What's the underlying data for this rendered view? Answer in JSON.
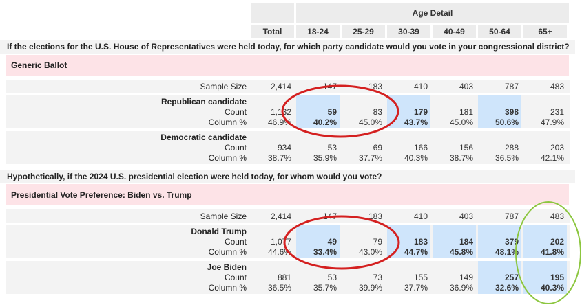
{
  "table": {
    "age_detail": "Age Detail",
    "columns": [
      "Total",
      "18-24",
      "25-29",
      "30-39",
      "40-49",
      "50-64",
      "65+"
    ]
  },
  "q1": {
    "question": "If the elections for the U.S. House of Representatives were held today, for which party candidate would you vote in your congressional district?",
    "banner": "Generic Ballot",
    "sample_label": "Sample Size",
    "sample": [
      "2,414",
      "147",
      "183",
      "410",
      "403",
      "787",
      "483"
    ],
    "groups": [
      {
        "name": "Republican candidate",
        "count_label": "Count",
        "pct_label": "Column %",
        "count": [
          "1,132",
          "59",
          "83",
          "179",
          "181",
          "398",
          "231"
        ],
        "pct": [
          "46.9%",
          "40.2%",
          "45.0%",
          "43.7%",
          "45.0%",
          "50.6%",
          "47.9%"
        ],
        "highlight": [
          false,
          true,
          false,
          true,
          false,
          true,
          false
        ]
      },
      {
        "name": "Democratic candidate",
        "count_label": "Count",
        "pct_label": "Column %",
        "count": [
          "934",
          "53",
          "69",
          "166",
          "156",
          "288",
          "203"
        ],
        "pct": [
          "38.7%",
          "35.9%",
          "37.7%",
          "40.3%",
          "38.7%",
          "36.5%",
          "42.1%"
        ],
        "highlight": [
          false,
          false,
          false,
          false,
          false,
          false,
          false
        ]
      }
    ]
  },
  "q2": {
    "question": "Hypothetically, if the 2024 U.S. presidential election were held today, for whom would you vote?",
    "banner": "Presidential Vote Preference: Biden vs. Trump",
    "sample_label": "Sample Size",
    "sample": [
      "2,414",
      "147",
      "183",
      "410",
      "403",
      "787",
      "483"
    ],
    "groups": [
      {
        "name": "Donald Trump",
        "count_label": "Count",
        "pct_label": "Column %",
        "count": [
          "1,077",
          "49",
          "79",
          "183",
          "184",
          "379",
          "202"
        ],
        "pct": [
          "44.6%",
          "33.4%",
          "43.0%",
          "44.7%",
          "45.8%",
          "48.1%",
          "41.8%"
        ],
        "highlight": [
          false,
          true,
          false,
          true,
          true,
          true,
          true
        ]
      },
      {
        "name": "Joe Biden",
        "count_label": "Count",
        "pct_label": "Column %",
        "count": [
          "881",
          "53",
          "73",
          "155",
          "149",
          "257",
          "195"
        ],
        "pct": [
          "36.5%",
          "35.7%",
          "39.9%",
          "37.7%",
          "36.9%",
          "32.6%",
          "40.3%"
        ],
        "highlight": [
          false,
          false,
          false,
          false,
          false,
          true,
          true
        ]
      }
    ]
  },
  "annotations": {
    "red_color": "#d42020",
    "green_color": "#8cc63f"
  }
}
